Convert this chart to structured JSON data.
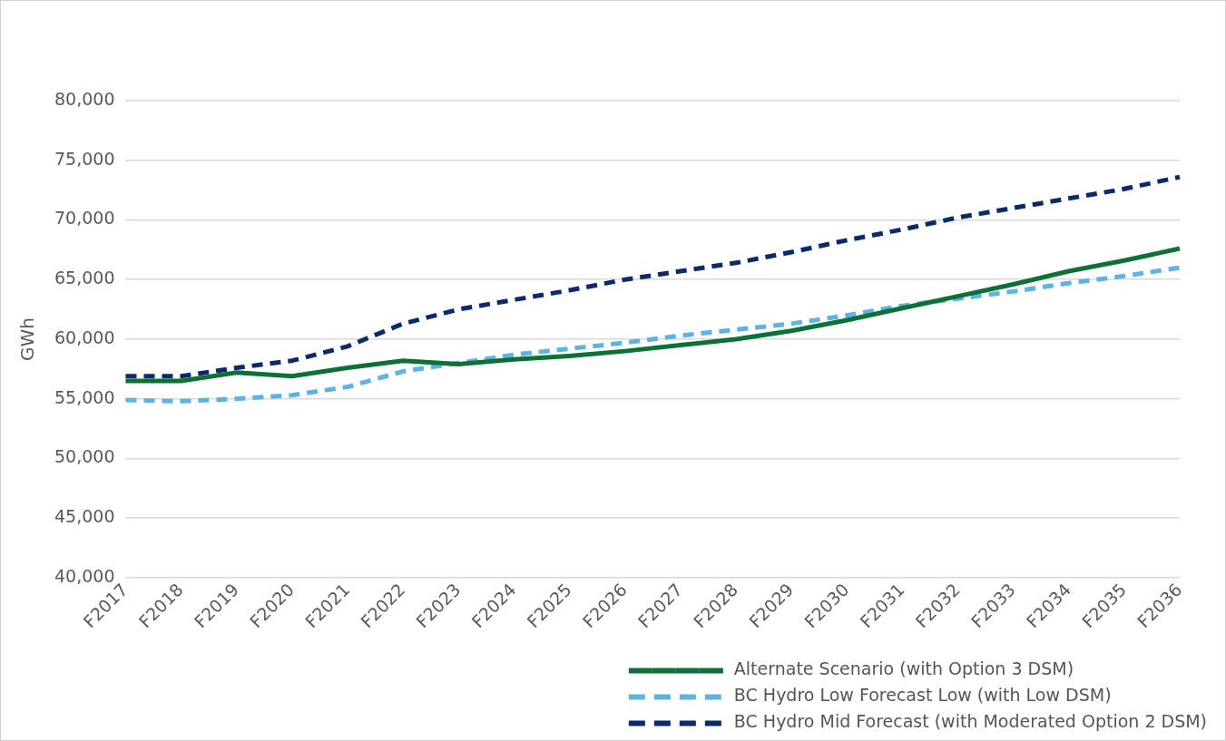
{
  "chart_data": {
    "type": "line",
    "ylabel": "GWh",
    "categories": [
      "F2017",
      "F2018",
      "F2019",
      "F2020",
      "F2021",
      "F2022",
      "F2023",
      "F2024",
      "F2025",
      "F2026",
      "F2027",
      "F2028",
      "F2029",
      "F2030",
      "F2031",
      "F2032",
      "F2033",
      "F2034",
      "F2035",
      "F2036"
    ],
    "series": [
      {
        "name": "Alternate Scenario (with Option 3 DSM)",
        "color": "#0b7137",
        "line_style": "solid",
        "values": [
          56500,
          56500,
          57200,
          56900,
          57600,
          58200,
          57900,
          58300,
          58600,
          59000,
          59500,
          60000,
          60700,
          61600,
          62600,
          63600,
          64600,
          65700,
          66600,
          67600
        ]
      },
      {
        "name": "BC Hydro Low Forecast Low (with Low DSM)",
        "color": "#5bb3e6",
        "line_style": "dashed",
        "values": [
          54900,
          54800,
          55000,
          55300,
          56000,
          57300,
          58000,
          58700,
          59200,
          59700,
          60300,
          60800,
          61300,
          62000,
          62800,
          63400,
          64000,
          64700,
          65300,
          66000
        ]
      },
      {
        "name": "BC Hydro Mid Forecast (with Moderated Option 2 DSM)",
        "color": "#0a2a6e",
        "line_style": "dashed",
        "values": [
          56900,
          56900,
          57600,
          58200,
          59400,
          61300,
          62500,
          63300,
          64100,
          65000,
          65700,
          66400,
          67300,
          68300,
          69200,
          70200,
          71000,
          71800,
          72600,
          73600
        ]
      }
    ],
    "ylim": [
      40000,
      80000
    ],
    "yticks": [
      {
        "value": 40000,
        "label": "40,000"
      },
      {
        "value": 45000,
        "label": "45,000"
      },
      {
        "value": 50000,
        "label": "50,000"
      },
      {
        "value": 55000,
        "label": "55,000"
      },
      {
        "value": 60000,
        "label": "60,000"
      },
      {
        "value": 65000,
        "label": "65,000"
      },
      {
        "value": 70000,
        "label": "70,000"
      },
      {
        "value": 75000,
        "label": "75,000"
      },
      {
        "value": 80000,
        "label": "80,000"
      }
    ],
    "grid": "y",
    "legend": "bottom right",
    "marker": "none"
  }
}
